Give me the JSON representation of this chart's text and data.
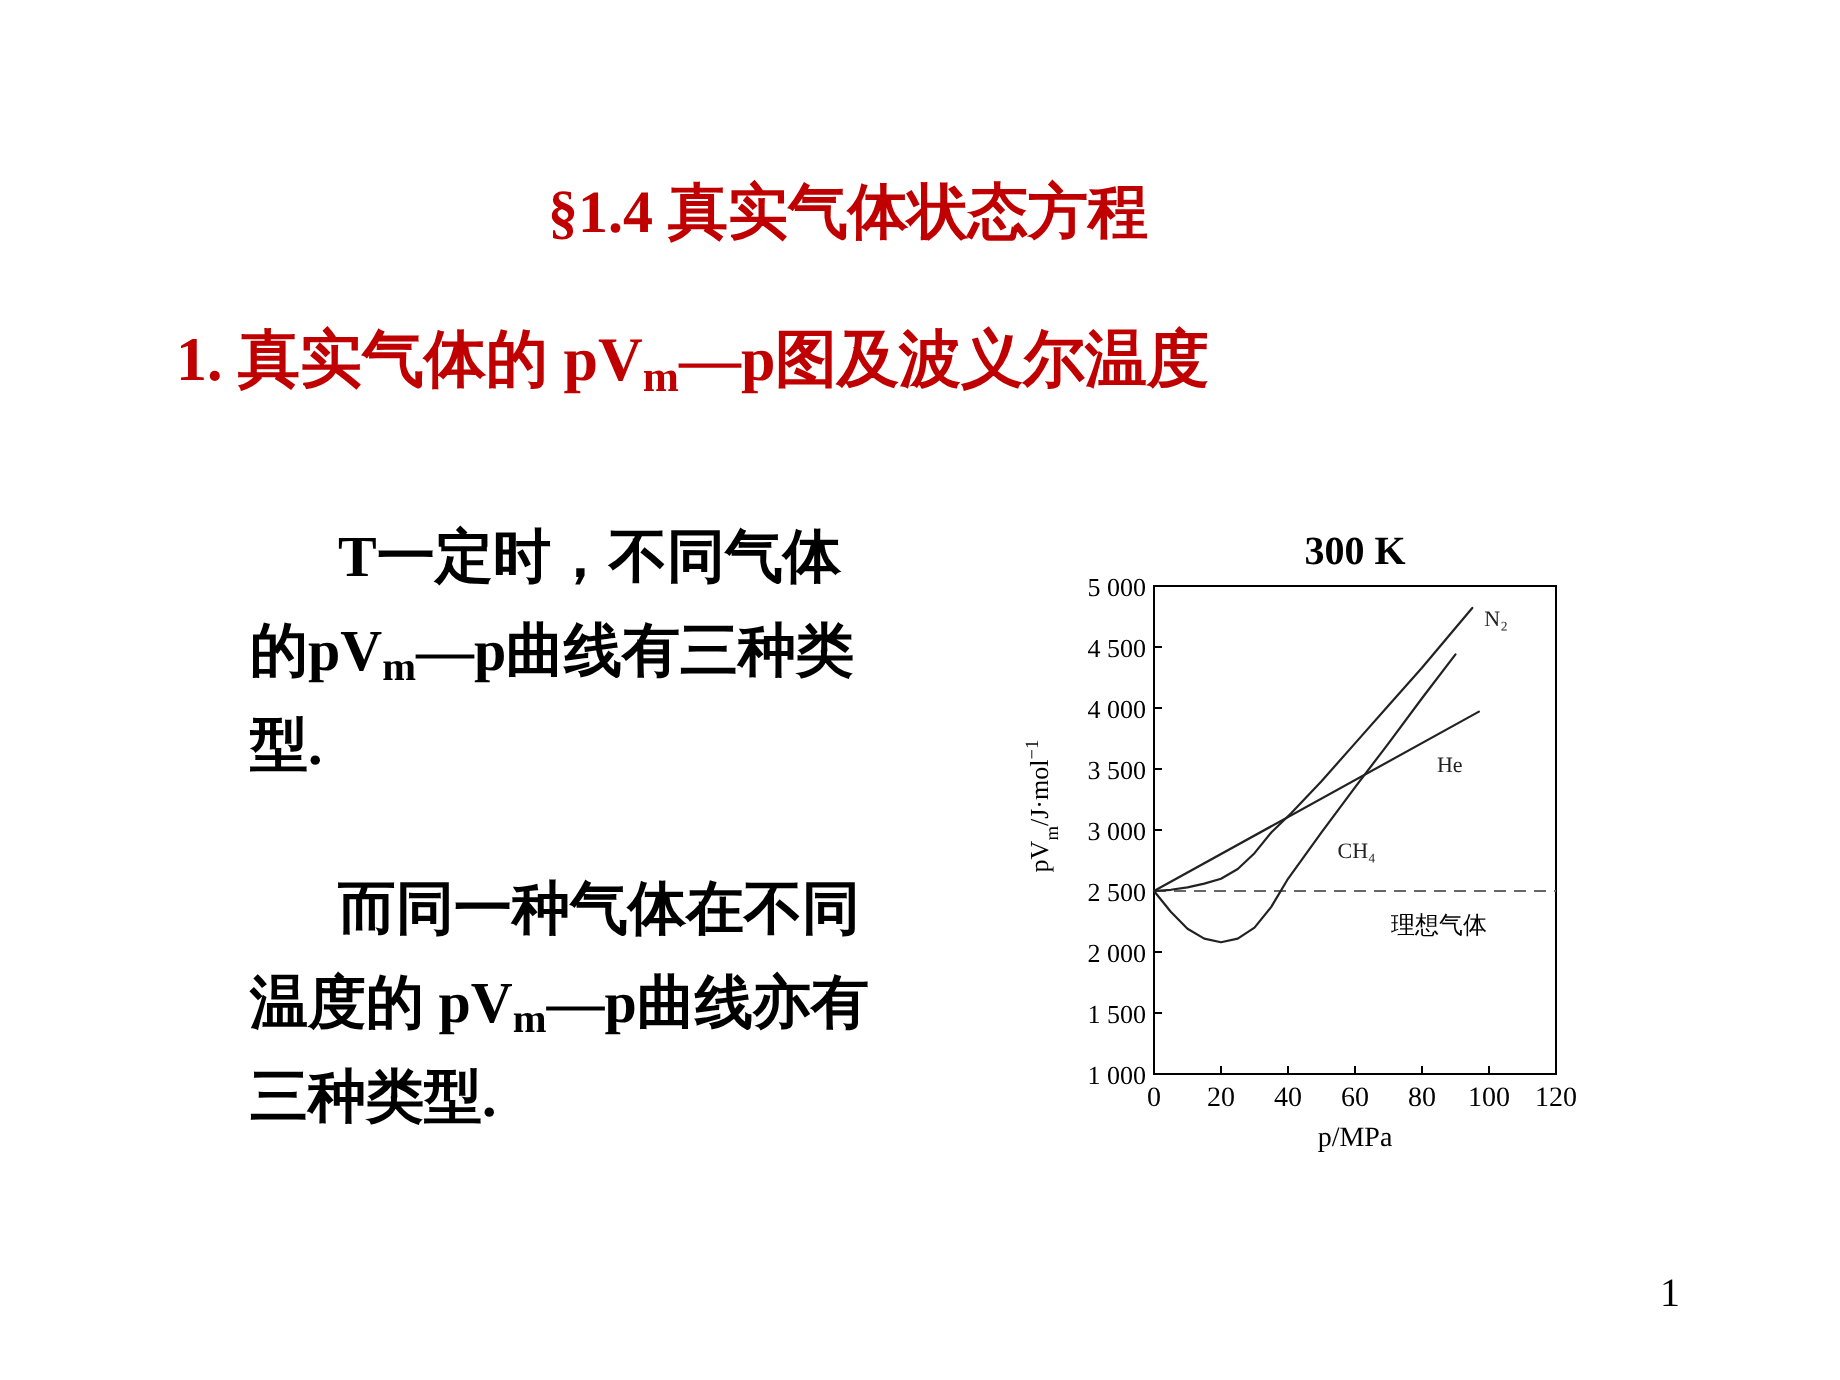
{
  "chart_data": {
    "type": "line",
    "title": "§1.4 真实气体状态方程",
    "subtitle": "1. 真实气体的 pV$_{m}$—p图及波义尔温度",
    "xlabel": "p/MPa",
    "ylabel": "pV$_{m}$/J·mol$^{−1}$",
    "annotations": [
      "T一定时，不同气体的pV$_{m}$—p曲线有三种类型.",
      "而同一种气体在不同温度的 pV$_{m}$—p曲线亦有三种类型.",
      "300 K",
      "1"
    ],
    "series": [
      {
        "name": "N₂",
        "color": "#222222",
        "x": [
          0,
          5,
          10,
          15,
          20,
          25,
          30,
          35,
          41,
          50,
          60,
          70,
          80,
          95
        ],
        "values": [
          2500,
          2510,
          2530,
          2560,
          2600,
          2680,
          2810,
          2980,
          3140,
          3400,
          3710,
          4020,
          4330,
          4820
        ]
      },
      {
        "name": "He",
        "color": "#222222",
        "x": [
          0,
          97
        ],
        "values": [
          2500,
          3970
        ]
      },
      {
        "name": "CH₄",
        "color": "#222222",
        "x": [
          0,
          5,
          10,
          15,
          20,
          25,
          30,
          35,
          40,
          50,
          60,
          70,
          80,
          90
        ],
        "values": [
          2500,
          2330,
          2190,
          2110,
          2080,
          2110,
          2200,
          2370,
          2600,
          2980,
          3350,
          3710,
          4080,
          4440
        ]
      }
    ],
    "xlim": [
      0,
      120
    ],
    "xticks": [
      0,
      20,
      40,
      60,
      80,
      100,
      120
    ],
    "ylim": [
      1000,
      5000
    ],
    "yticks": [
      {
        "value": 1000,
        "label": "1 000"
      },
      {
        "value": 1500,
        "label": "1 500"
      },
      {
        "value": 2000,
        "label": "2 000"
      },
      {
        "value": 2500,
        "label": "2 500"
      },
      {
        "value": 3000,
        "label": "3 000"
      },
      {
        "value": 3500,
        "label": "3 500"
      },
      {
        "value": 4000,
        "label": "4 000"
      },
      {
        "value": 4500,
        "label": "4 500"
      },
      {
        "value": 5000,
        "label": "5 000"
      }
    ],
    "ref_lines": [
      {
        "axis": "y",
        "value": 2500,
        "label": "理想气体",
        "color": "#666666",
        "line_style": "dashed"
      }
    ]
  }
}
